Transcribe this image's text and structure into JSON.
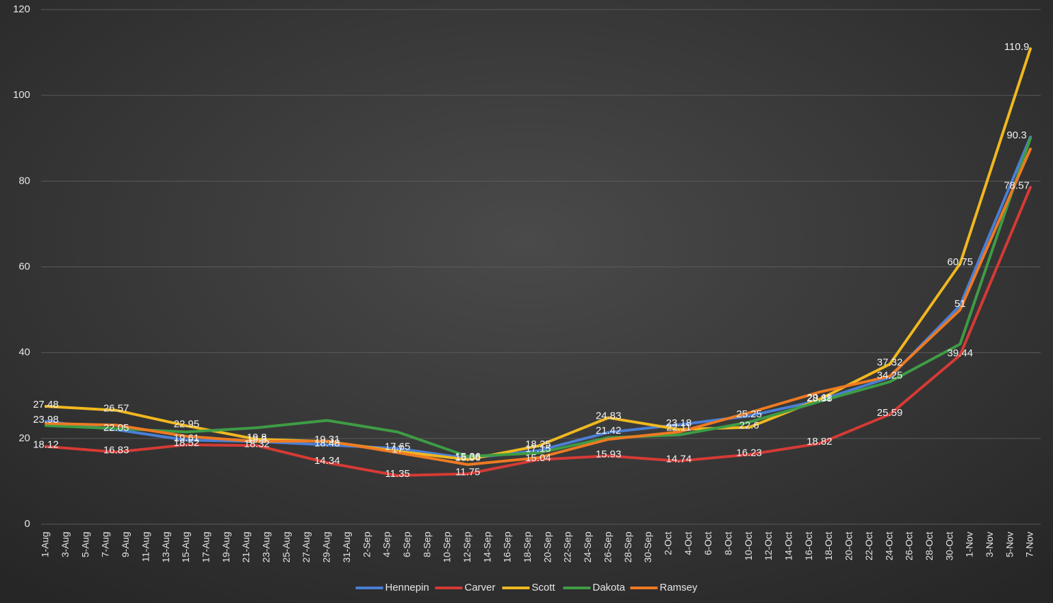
{
  "chart_data": {
    "type": "line",
    "categories": [
      "1-Aug",
      null,
      "3-Aug",
      null,
      "5-Aug",
      null,
      "7-Aug",
      null,
      "9-Aug",
      null,
      "11-Aug",
      null,
      "13-Aug",
      null,
      "15-Aug",
      null,
      "17-Aug",
      null,
      "19-Aug",
      null,
      "21-Aug",
      null,
      "23-Aug",
      null,
      "25-Aug",
      null,
      "27-Aug",
      null,
      "29-Aug",
      null,
      "31-Aug",
      null,
      "2-Sep",
      null,
      "4-Sep",
      null,
      "6-Sep",
      null,
      "8-Sep",
      null,
      "10-Sep",
      null,
      "12-Sep",
      null,
      "14-Sep",
      null,
      "16-Sep",
      null,
      "18-Sep",
      null,
      "20-Sep",
      null,
      "22-Sep",
      null,
      "24-Sep",
      null,
      "26-Sep",
      null,
      "28-Sep",
      null,
      "30-Sep",
      null,
      "2-Oct",
      null,
      "4-Oct",
      null,
      "6-Oct",
      null,
      "8-Oct",
      null,
      "10-Oct",
      null,
      "12-Oct",
      null,
      "14-Oct",
      null,
      "16-Oct",
      null,
      "18-Oct",
      null,
      "20-Oct",
      null,
      "22-Oct",
      null,
      "24-Oct",
      null,
      "26-Oct",
      null,
      "28-Oct",
      null,
      "30-Oct",
      null,
      "1-Nov",
      null,
      "3-Nov",
      null,
      "5-Nov",
      null,
      "7-Nov"
    ],
    "connect_gaps": true,
    "series": [
      {
        "name": "Hennepin",
        "color": "#4a7fd6",
        "data_labels": true,
        "values": [
          23.98,
          null,
          null,
          null,
          null,
          null,
          null,
          22.05,
          null,
          null,
          null,
          null,
          null,
          null,
          19.61,
          null,
          null,
          null,
          null,
          null,
          null,
          19.3,
          null,
          null,
          null,
          null,
          null,
          null,
          18.48,
          null,
          null,
          null,
          null,
          null,
          null,
          17.65,
          null,
          null,
          null,
          null,
          null,
          null,
          15.36,
          null,
          null,
          null,
          null,
          null,
          null,
          17.15,
          null,
          null,
          null,
          null,
          null,
          null,
          21.42,
          null,
          null,
          null,
          null,
          null,
          null,
          23.18,
          null,
          null,
          null,
          null,
          null,
          null,
          25.25,
          null,
          null,
          null,
          null,
          null,
          null,
          28.88,
          null,
          null,
          null,
          null,
          null,
          null,
          34.25,
          null,
          null,
          null,
          null,
          null,
          null,
          51,
          null,
          null,
          null,
          null,
          null,
          null,
          90.3
        ]
      },
      {
        "name": "Carver",
        "color": "#d63a35",
        "data_labels": true,
        "values": [
          18.12,
          null,
          null,
          null,
          null,
          null,
          null,
          16.83,
          null,
          null,
          null,
          null,
          null,
          null,
          18.52,
          null,
          null,
          null,
          null,
          null,
          null,
          18.32,
          null,
          null,
          null,
          null,
          null,
          null,
          14.34,
          null,
          null,
          null,
          null,
          null,
          null,
          11.35,
          null,
          null,
          null,
          null,
          null,
          null,
          11.75,
          null,
          null,
          null,
          null,
          null,
          null,
          15.04,
          null,
          null,
          null,
          null,
          null,
          null,
          15.93,
          null,
          null,
          null,
          null,
          null,
          null,
          14.74,
          null,
          null,
          null,
          null,
          null,
          null,
          16.23,
          null,
          null,
          null,
          null,
          null,
          null,
          18.82,
          null,
          null,
          null,
          null,
          null,
          null,
          25.59,
          null,
          null,
          null,
          null,
          null,
          null,
          39.44,
          null,
          null,
          null,
          null,
          null,
          null,
          78.57
        ]
      },
      {
        "name": "Scott",
        "color": "#f0b820",
        "data_labels": true,
        "values": [
          27.48,
          null,
          null,
          null,
          null,
          null,
          null,
          26.57,
          null,
          null,
          null,
          null,
          null,
          null,
          22.95,
          null,
          null,
          null,
          null,
          null,
          null,
          19.8,
          null,
          null,
          null,
          null,
          null,
          null,
          19.31,
          null,
          null,
          null,
          null,
          null,
          null,
          17,
          null,
          null,
          null,
          null,
          null,
          null,
          15.06,
          null,
          null,
          null,
          null,
          null,
          null,
          18.25,
          null,
          null,
          null,
          null,
          null,
          null,
          24.83,
          null,
          null,
          null,
          null,
          null,
          null,
          22.11,
          null,
          null,
          null,
          null,
          null,
          null,
          22.6,
          null,
          null,
          null,
          null,
          null,
          null,
          29.11,
          null,
          null,
          null,
          null,
          null,
          null,
          37.32,
          null,
          null,
          null,
          null,
          null,
          null,
          60.75,
          null,
          null,
          null,
          null,
          null,
          null,
          110.9
        ]
      },
      {
        "name": "Dakota",
        "color": "#3e9c45",
        "data_labels": false,
        "values": [
          23,
          null,
          null,
          null,
          null,
          null,
          null,
          22.3,
          null,
          null,
          null,
          null,
          null,
          null,
          21.5,
          null,
          null,
          null,
          null,
          null,
          null,
          22.5,
          null,
          null,
          null,
          null,
          null,
          null,
          24.2,
          null,
          null,
          null,
          null,
          null,
          null,
          21.5,
          null,
          null,
          null,
          null,
          null,
          null,
          15.8,
          null,
          null,
          null,
          null,
          null,
          null,
          16.6,
          null,
          null,
          null,
          null,
          null,
          null,
          20.2,
          null,
          null,
          null,
          null,
          null,
          null,
          20.8,
          null,
          null,
          null,
          null,
          null,
          null,
          23.8,
          null,
          null,
          null,
          null,
          null,
          null,
          28.6,
          null,
          null,
          null,
          null,
          null,
          null,
          33.2,
          null,
          null,
          null,
          null,
          null,
          null,
          42,
          null,
          null,
          null,
          null,
          null,
          null,
          90
        ]
      },
      {
        "name": "Ramsey",
        "color": "#ee7a22",
        "data_labels": false,
        "values": [
          23.5,
          null,
          null,
          null,
          null,
          null,
          null,
          23.1,
          null,
          null,
          null,
          null,
          null,
          null,
          20.5,
          null,
          null,
          null,
          null,
          null,
          null,
          19.3,
          null,
          null,
          null,
          null,
          null,
          null,
          19.4,
          null,
          null,
          null,
          null,
          null,
          null,
          16.7,
          null,
          null,
          null,
          null,
          null,
          null,
          13.9,
          null,
          null,
          null,
          null,
          null,
          null,
          15.5,
          null,
          null,
          null,
          null,
          null,
          null,
          19.8,
          null,
          null,
          null,
          null,
          null,
          null,
          21.5,
          null,
          null,
          null,
          null,
          null,
          null,
          26,
          null,
          null,
          null,
          null,
          null,
          null,
          30.8,
          null,
          null,
          null,
          null,
          null,
          null,
          34.5,
          null,
          null,
          null,
          null,
          null,
          null,
          50,
          null,
          null,
          null,
          null,
          null,
          null,
          87.5
        ]
      }
    ],
    "ylim": [
      0,
      120
    ],
    "yticks": [
      0,
      20,
      40,
      60,
      80,
      100,
      120
    ],
    "grid": true,
    "legend": "bottom"
  }
}
